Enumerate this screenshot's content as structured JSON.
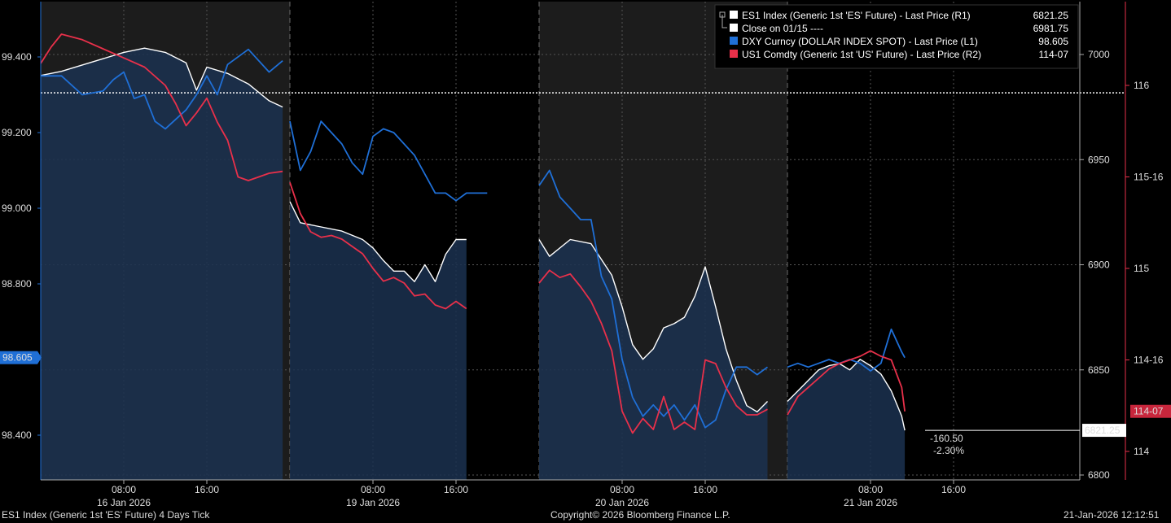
{
  "chart_data": {
    "type": "line",
    "title": "ES1 Index (Generic 1st 'ES' Future) 4 Days Tick",
    "left_axis": {
      "min": 98.3,
      "max": 99.55,
      "ticks": [
        "99.400",
        "99.200",
        "99.000",
        "98.800",
        "98.400"
      ],
      "tick_values": [
        99.4,
        99.2,
        99.0,
        98.8,
        98.4
      ],
      "current_label": "98.605",
      "current_value": 98.605,
      "color": "#1f6fd6"
    },
    "mid_axis": {
      "min": 6797,
      "max": 7022,
      "ticks": [
        "7000",
        "6950",
        "6900",
        "6850",
        "6800"
      ],
      "tick_values": [
        7000,
        6950,
        6900,
        6850,
        6800
      ],
      "current_label": "6821.25",
      "current_value": 6821.25
    },
    "right_axis": {
      "min": 113.78,
      "max": 116.5,
      "ticks": [
        "116",
        "115-16",
        "115",
        "114-16",
        "114"
      ],
      "tick_values": [
        116,
        115.5,
        115,
        114.5,
        114
      ],
      "current_label": "114-07",
      "current_value": 114.219,
      "color": "#e8304a"
    },
    "x_labels": [
      {
        "time": "08:00",
        "date": "16 Jan 2026",
        "day": 0,
        "hour": 8
      },
      {
        "time": "16:00",
        "date": "",
        "day": 0,
        "hour": 16
      },
      {
        "time": "08:00",
        "date": "19 Jan 2026",
        "day": 1,
        "hour": 8
      },
      {
        "time": "16:00",
        "date": "",
        "day": 1,
        "hour": 16
      },
      {
        "time": "08:00",
        "date": "20 Jan 2026",
        "day": 2,
        "hour": 8
      },
      {
        "time": "16:00",
        "date": "",
        "day": 2,
        "hour": 16
      },
      {
        "time": "08:00",
        "date": "21 Jan 2026",
        "day": 3,
        "hour": 8
      },
      {
        "time": "16:00",
        "date": "",
        "day": 3,
        "hour": 16
      }
    ],
    "days": [
      "16 Jan 2026",
      "19 Jan 2026",
      "20 Jan 2026",
      "21 Jan 2026"
    ],
    "reference_line": {
      "label": "Close on 01/15 ----",
      "value": 6981.75
    },
    "change_annotation": {
      "abs": "-160.50",
      "pct": "-2.30%"
    },
    "legend": [
      {
        "name": "ES1 Index (Generic 1st 'ES' Future) - Last Price (R1)",
        "value": "6821.25",
        "color": "#ffffff"
      },
      {
        "name": "Close on 01/15 ----",
        "value": "6981.75",
        "color": "#ffffff"
      },
      {
        "name": "DXY Curncy (DOLLAR INDEX SPOT) - Last Price (L1)",
        "value": "98.605",
        "color": "#1f6fd6"
      },
      {
        "name": "US1 Comdty (Generic 1st 'US' Future) - Last Price (R2)",
        "value": "114-07",
        "color": "#e8304a"
      }
    ],
    "series": [
      {
        "name": "ES1 Index",
        "axis": "mid",
        "color": "#ffffff",
        "points": [
          [
            0,
            0.0,
            6990
          ],
          [
            0,
            2,
            6992
          ],
          [
            0,
            4,
            6995
          ],
          [
            0,
            6,
            6998
          ],
          [
            0,
            8,
            7001
          ],
          [
            0,
            10,
            7003
          ],
          [
            0,
            12,
            7001
          ],
          [
            0,
            14,
            6996
          ],
          [
            0,
            15,
            6983
          ],
          [
            0,
            16,
            6994
          ],
          [
            0,
            18,
            6991
          ],
          [
            0,
            20,
            6986
          ],
          [
            0,
            22,
            6978
          ],
          [
            0,
            23.3,
            6975
          ],
          [
            1,
            0.0,
            6930
          ],
          [
            1,
            1,
            6920
          ],
          [
            1,
            3,
            6918
          ],
          [
            1,
            5,
            6916
          ],
          [
            1,
            7,
            6912
          ],
          [
            1,
            8,
            6908
          ],
          [
            1,
            9,
            6902
          ],
          [
            1,
            10,
            6897
          ],
          [
            1,
            11,
            6897
          ],
          [
            1,
            12,
            6892
          ],
          [
            1,
            13,
            6900
          ],
          [
            1,
            14,
            6892
          ],
          [
            1,
            15,
            6905
          ],
          [
            1,
            16,
            6912
          ],
          [
            1,
            17,
            6912
          ],
          [
            2,
            0.0,
            6912
          ],
          [
            2,
            1,
            6904
          ],
          [
            2,
            3,
            6912
          ],
          [
            2,
            5,
            6910
          ],
          [
            2,
            7,
            6895
          ],
          [
            2,
            8,
            6880
          ],
          [
            2,
            9,
            6862
          ],
          [
            2,
            10,
            6855
          ],
          [
            2,
            11,
            6860
          ],
          [
            2,
            12,
            6870
          ],
          [
            2,
            13,
            6872
          ],
          [
            2,
            14,
            6875
          ],
          [
            2,
            15,
            6885
          ],
          [
            2,
            16,
            6899
          ],
          [
            2,
            17,
            6880
          ],
          [
            2,
            18,
            6860
          ],
          [
            2,
            19,
            6845
          ],
          [
            2,
            20,
            6833
          ],
          [
            2,
            21,
            6830
          ],
          [
            2,
            22,
            6835
          ],
          [
            3,
            0.0,
            6835
          ],
          [
            3,
            1,
            6840
          ],
          [
            3,
            2,
            6845
          ],
          [
            3,
            3,
            6850
          ],
          [
            3,
            4,
            6852
          ],
          [
            3,
            5,
            6853
          ],
          [
            3,
            6,
            6850
          ],
          [
            3,
            7,
            6855
          ],
          [
            3,
            8,
            6852
          ],
          [
            3,
            9,
            6848
          ],
          [
            3,
            10,
            6840
          ],
          [
            3,
            11,
            6828
          ],
          [
            3,
            11.3,
            6821.25
          ]
        ]
      },
      {
        "name": "DXY Curncy",
        "axis": "left",
        "color": "#1f6fd6",
        "points": [
          [
            0,
            0.0,
            99.35
          ],
          [
            0,
            2,
            99.35
          ],
          [
            0,
            4,
            99.3
          ],
          [
            0,
            6,
            99.31
          ],
          [
            0,
            7,
            99.34
          ],
          [
            0,
            8,
            99.36
          ],
          [
            0,
            9,
            99.29
          ],
          [
            0,
            10,
            99.3
          ],
          [
            0,
            11,
            99.23
          ],
          [
            0,
            12,
            99.21
          ],
          [
            0,
            14,
            99.26
          ],
          [
            0,
            15,
            99.3
          ],
          [
            0,
            16,
            99.35
          ],
          [
            0,
            17,
            99.3
          ],
          [
            0,
            18,
            99.38
          ],
          [
            0,
            20,
            99.42
          ],
          [
            0,
            22,
            99.36
          ],
          [
            0,
            23.3,
            99.39
          ],
          [
            1,
            0.0,
            99.23
          ],
          [
            1,
            1,
            99.1
          ],
          [
            1,
            2,
            99.15
          ],
          [
            1,
            3,
            99.23
          ],
          [
            1,
            4,
            99.2
          ],
          [
            1,
            5,
            99.17
          ],
          [
            1,
            6,
            99.12
          ],
          [
            1,
            7,
            99.09
          ],
          [
            1,
            8,
            99.19
          ],
          [
            1,
            9,
            99.21
          ],
          [
            1,
            10,
            99.2
          ],
          [
            1,
            11,
            99.17
          ],
          [
            1,
            12,
            99.14
          ],
          [
            1,
            13,
            99.09
          ],
          [
            1,
            14,
            99.04
          ],
          [
            1,
            15,
            99.04
          ],
          [
            1,
            16,
            99.02
          ],
          [
            1,
            17,
            99.04
          ],
          [
            1,
            18,
            99.04
          ],
          [
            1,
            19,
            99.04
          ],
          [
            2,
            0.0,
            99.06
          ],
          [
            2,
            1,
            99.1
          ],
          [
            2,
            2,
            99.03
          ],
          [
            2,
            3,
            99.0
          ],
          [
            2,
            4,
            98.97
          ],
          [
            2,
            5,
            98.97
          ],
          [
            2,
            6,
            98.82
          ],
          [
            2,
            7,
            98.76
          ],
          [
            2,
            8,
            98.6
          ],
          [
            2,
            9,
            98.5
          ],
          [
            2,
            10,
            98.45
          ],
          [
            2,
            11,
            98.48
          ],
          [
            2,
            12,
            98.45
          ],
          [
            2,
            13,
            98.48
          ],
          [
            2,
            14,
            98.44
          ],
          [
            2,
            15,
            98.48
          ],
          [
            2,
            16,
            98.42
          ],
          [
            2,
            17,
            98.44
          ],
          [
            2,
            18,
            98.52
          ],
          [
            2,
            19,
            98.58
          ],
          [
            2,
            20,
            98.58
          ],
          [
            2,
            21,
            98.56
          ],
          [
            2,
            22,
            98.58
          ],
          [
            3,
            0.0,
            98.58
          ],
          [
            3,
            1,
            98.59
          ],
          [
            3,
            2,
            98.58
          ],
          [
            3,
            3,
            98.59
          ],
          [
            3,
            4,
            98.6
          ],
          [
            3,
            5,
            98.59
          ],
          [
            3,
            6,
            98.6
          ],
          [
            3,
            7,
            98.59
          ],
          [
            3,
            8,
            98.57
          ],
          [
            3,
            9,
            98.59
          ],
          [
            3,
            10,
            98.68
          ],
          [
            3,
            11,
            98.62
          ],
          [
            3,
            11.3,
            98.605
          ]
        ]
      },
      {
        "name": "US1 Comdty",
        "axis": "right",
        "color": "#e8304a",
        "points": [
          [
            0,
            0.0,
            116.12
          ],
          [
            0,
            1,
            116.21
          ],
          [
            0,
            2,
            116.28
          ],
          [
            0,
            4,
            116.25
          ],
          [
            0,
            6,
            116.2
          ],
          [
            0,
            8,
            116.15
          ],
          [
            0,
            10,
            116.1
          ],
          [
            0,
            12,
            116.0
          ],
          [
            0,
            13,
            115.9
          ],
          [
            0,
            14,
            115.78
          ],
          [
            0,
            15,
            115.85
          ],
          [
            0,
            16,
            115.93
          ],
          [
            0,
            17,
            115.8
          ],
          [
            0,
            18,
            115.7
          ],
          [
            0,
            19,
            115.5
          ],
          [
            0,
            20,
            115.48
          ],
          [
            0,
            21,
            115.5
          ],
          [
            0,
            22,
            115.52
          ],
          [
            0,
            23.3,
            115.53
          ],
          [
            1,
            0.0,
            115.47
          ],
          [
            1,
            1,
            115.3
          ],
          [
            1,
            2,
            115.2
          ],
          [
            1,
            3,
            115.17
          ],
          [
            1,
            4,
            115.18
          ],
          [
            1,
            5,
            115.16
          ],
          [
            1,
            6,
            115.12
          ],
          [
            1,
            7,
            115.08
          ],
          [
            1,
            8,
            115.0
          ],
          [
            1,
            9,
            114.93
          ],
          [
            1,
            10,
            114.95
          ],
          [
            1,
            11,
            114.92
          ],
          [
            1,
            12,
            114.85
          ],
          [
            1,
            13,
            114.86
          ],
          [
            1,
            14,
            114.8
          ],
          [
            1,
            15,
            114.78
          ],
          [
            1,
            16,
            114.82
          ],
          [
            1,
            17,
            114.78
          ],
          [
            2,
            0.0,
            114.92
          ],
          [
            2,
            1,
            114.99
          ],
          [
            2,
            2,
            114.95
          ],
          [
            2,
            3,
            114.97
          ],
          [
            2,
            4,
            114.9
          ],
          [
            2,
            5,
            114.82
          ],
          [
            2,
            6,
            114.7
          ],
          [
            2,
            7,
            114.55
          ],
          [
            2,
            8,
            114.22
          ],
          [
            2,
            9,
            114.1
          ],
          [
            2,
            10,
            114.18
          ],
          [
            2,
            11,
            114.12
          ],
          [
            2,
            12,
            114.3
          ],
          [
            2,
            13,
            114.12
          ],
          [
            2,
            14,
            114.16
          ],
          [
            2,
            15,
            114.12
          ],
          [
            2,
            16,
            114.5
          ],
          [
            2,
            17,
            114.48
          ],
          [
            2,
            18,
            114.35
          ],
          [
            2,
            19,
            114.25
          ],
          [
            2,
            20,
            114.2
          ],
          [
            2,
            21,
            114.2
          ],
          [
            2,
            22,
            114.23
          ],
          [
            3,
            0.0,
            114.2
          ],
          [
            3,
            1,
            114.3
          ],
          [
            3,
            2,
            114.35
          ],
          [
            3,
            3,
            114.4
          ],
          [
            3,
            4,
            114.45
          ],
          [
            3,
            5,
            114.48
          ],
          [
            3,
            6,
            114.5
          ],
          [
            3,
            7,
            114.52
          ],
          [
            3,
            8,
            114.55
          ],
          [
            3,
            9,
            114.52
          ],
          [
            3,
            10,
            114.5
          ],
          [
            3,
            11,
            114.35
          ],
          [
            3,
            11.3,
            114.219
          ]
        ]
      }
    ]
  },
  "footer": {
    "left": "ES1 Index (Generic 1st 'ES' Future) 4 Days Tick",
    "center": "Copyright© 2026 Bloomberg Finance L.P.",
    "right": "21-Jan-2026 12:12:51"
  }
}
